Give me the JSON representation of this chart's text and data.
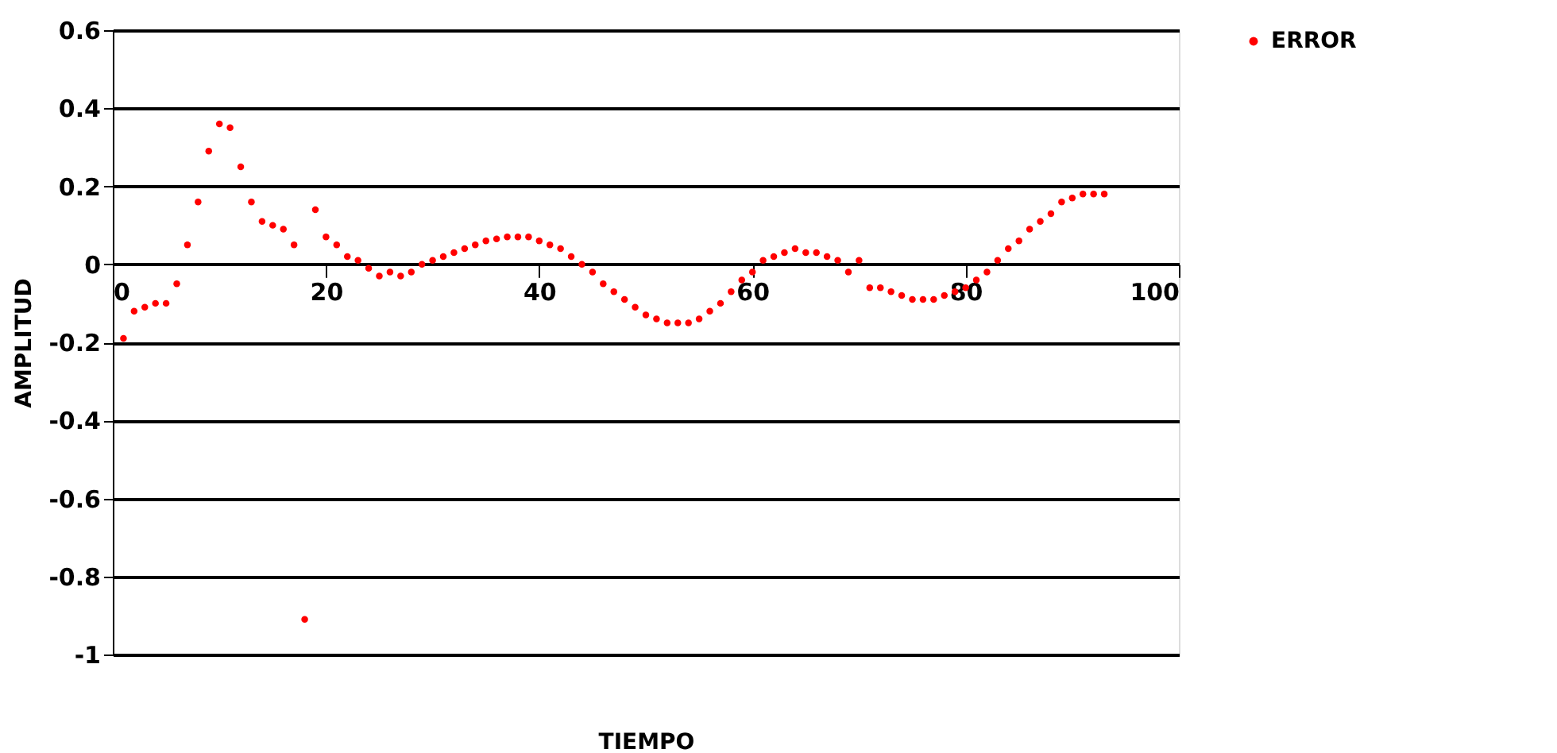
{
  "chart_data": {
    "type": "scatter",
    "xlabel": "TIEMPO",
    "ylabel": "AMPLITUD",
    "x": [
      1,
      2,
      3,
      4,
      5,
      6,
      7,
      8,
      9,
      10,
      11,
      12,
      13,
      14,
      15,
      16,
      17,
      18,
      19,
      20,
      21,
      22,
      23,
      24,
      25,
      26,
      27,
      28,
      29,
      30,
      31,
      32,
      33,
      34,
      35,
      36,
      37,
      38,
      39,
      40,
      41,
      42,
      43,
      44,
      45,
      46,
      47,
      48,
      49,
      50,
      51,
      52,
      53,
      54,
      55,
      56,
      57,
      58,
      59,
      60,
      61,
      62,
      63,
      64,
      65,
      66,
      67,
      68,
      69,
      70,
      71,
      72,
      73,
      74,
      75,
      76,
      77,
      78,
      79,
      80,
      81,
      82,
      83,
      84,
      85,
      86,
      87,
      88,
      89,
      90,
      91,
      92,
      93
    ],
    "series": [
      {
        "name": "ERROR",
        "color": "#ff0000",
        "values": [
          -0.19,
          -0.12,
          -0.11,
          -0.1,
          -0.1,
          -0.05,
          0.05,
          0.16,
          0.29,
          0.36,
          0.35,
          0.25,
          0.16,
          0.11,
          0.1,
          0.09,
          0.05,
          -0.91,
          0.14,
          0.07,
          0.05,
          0.02,
          0.01,
          -0.01,
          -0.03,
          -0.02,
          -0.03,
          -0.02,
          0.0,
          0.01,
          0.02,
          0.03,
          0.04,
          0.05,
          0.06,
          0.065,
          0.07,
          0.07,
          0.07,
          0.06,
          0.05,
          0.04,
          0.02,
          0.0,
          -0.02,
          -0.05,
          -0.07,
          -0.09,
          -0.11,
          -0.13,
          -0.14,
          -0.15,
          -0.15,
          -0.15,
          -0.14,
          -0.12,
          -0.1,
          -0.07,
          -0.04,
          -0.02,
          0.01,
          0.02,
          0.03,
          0.04,
          0.03,
          0.03,
          0.02,
          0.01,
          -0.02,
          0.01,
          -0.06,
          -0.06,
          -0.07,
          -0.08,
          -0.09,
          -0.09,
          -0.09,
          -0.08,
          -0.07,
          -0.06,
          -0.04,
          -0.02,
          0.01,
          0.04,
          0.06,
          0.09,
          0.11,
          0.13,
          0.16,
          0.17,
          0.18,
          0.18,
          0.18
        ]
      }
    ],
    "xlim": [
      0,
      100
    ],
    "xticks": [
      0,
      20,
      40,
      60,
      80,
      100
    ],
    "ylim": [
      -1,
      0.6
    ],
    "yticks": [
      -1,
      -0.8,
      -0.6,
      -0.4,
      -0.2,
      0,
      0.2,
      0.4,
      0.6
    ],
    "grid": "y",
    "legend": "right",
    "marker": "circle"
  }
}
